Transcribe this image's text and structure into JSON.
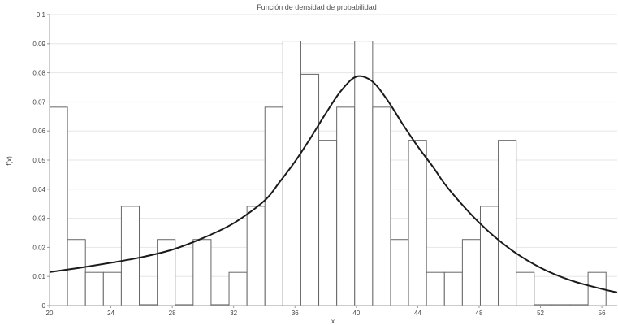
{
  "chart_data": {
    "type": "bar",
    "title": "Función de densidad de probabilidad",
    "xlabel": "x",
    "ylabel": "f(x)",
    "xlim": [
      20,
      57
    ],
    "ylim": [
      0,
      0.1
    ],
    "x_ticks": [
      20,
      24,
      28,
      32,
      36,
      40,
      44,
      48,
      52,
      56
    ],
    "y_ticks": [
      0,
      0.01,
      0.02,
      0.03,
      0.04,
      0.05,
      0.06,
      0.07,
      0.08,
      0.09,
      0.1
    ],
    "histogram": {
      "bin_width": 1.17,
      "bins_start": 20,
      "values": [
        0.0682,
        0.0227,
        0.0114,
        0.0114,
        0.0341,
        0.0003,
        0.0227,
        0.0003,
        0.0227,
        0.0003,
        0.0114,
        0.0341,
        0.0682,
        0.0909,
        0.0795,
        0.0568,
        0.0682,
        0.0909,
        0.0682,
        0.0227,
        0.0568,
        0.0114,
        0.0114,
        0.0227,
        0.0341,
        0.0568,
        0.0114,
        0.0003,
        0.0003,
        0.0003,
        0.0114
      ]
    },
    "density_curve": {
      "x": [
        20,
        22,
        24,
        26,
        28,
        30,
        32,
        34,
        35,
        36,
        37,
        38,
        39,
        40,
        41,
        42,
        43,
        44,
        45,
        46,
        48,
        50,
        52,
        54,
        56,
        57
      ],
      "y": [
        0.0115,
        0.013,
        0.0147,
        0.0166,
        0.0192,
        0.0232,
        0.0283,
        0.036,
        0.0425,
        0.0495,
        0.0575,
        0.066,
        0.0738,
        0.0787,
        0.0772,
        0.0708,
        0.0625,
        0.0547,
        0.0476,
        0.0402,
        0.0285,
        0.0195,
        0.013,
        0.0086,
        0.0057,
        0.0045
      ]
    }
  }
}
